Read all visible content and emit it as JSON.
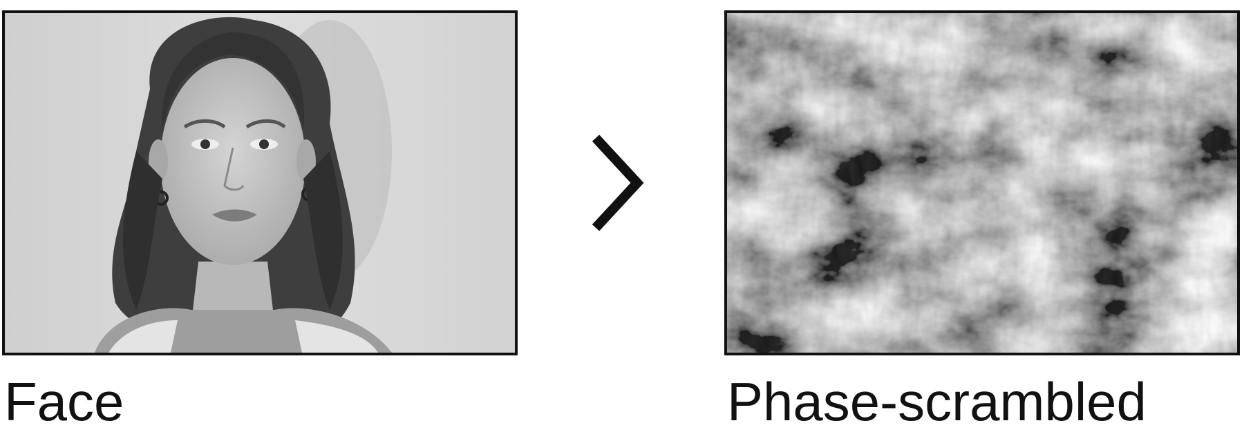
{
  "left_panel": {
    "caption": "Face",
    "image": "grayscale portrait photo of a woman"
  },
  "right_panel": {
    "caption": "Phase-scrambled",
    "image": "phase-scrambled noise image"
  },
  "relation": {
    "symbol": ">",
    "icon": "greater-than-icon"
  },
  "colors": {
    "frame": "#111111",
    "background": "#ffffff"
  }
}
